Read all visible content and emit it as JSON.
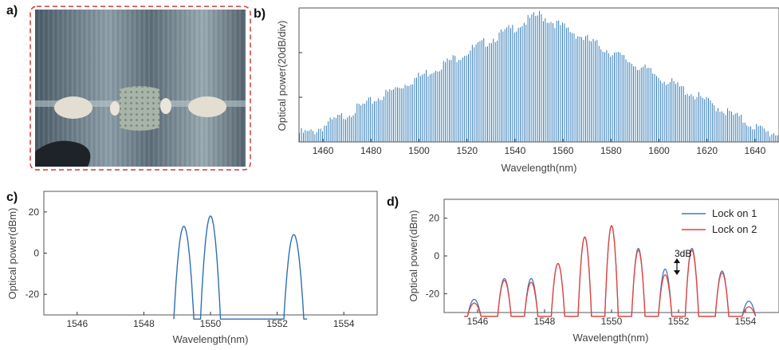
{
  "panel_labels": {
    "a": "a)",
    "b": "b)",
    "c": "c)",
    "d": "d)"
  },
  "photo": {
    "description_icon": "device-photo"
  },
  "chart_data": [
    {
      "id": "b",
      "type": "bar",
      "xlabel": "Wavelength(nm)",
      "ylabel": "Optical power(20dB/div)",
      "xlim": [
        1450,
        1650
      ],
      "xticks": [
        1460,
        1480,
        1500,
        1520,
        1540,
        1560,
        1580,
        1600,
        1620,
        1640
      ],
      "envelope": {
        "center_nm": 1550,
        "peak_div": 2.85,
        "edge_div": 0.2,
        "spacing_nm": 0.8
      },
      "color": "#1f6fb0"
    },
    {
      "id": "c",
      "type": "line",
      "xlabel": "Wavelength(nm)",
      "ylabel": "Optical power(dBm)",
      "xlim": [
        1545,
        1555
      ],
      "ylim": [
        -30,
        30
      ],
      "xticks": [
        1546,
        1548,
        1550,
        1552,
        1554
      ],
      "yticks": [
        20,
        0,
        -20
      ],
      "peaks": [
        {
          "x": 1549.2,
          "y": 13
        },
        {
          "x": 1550.0,
          "y": 18
        },
        {
          "x": 1552.5,
          "y": 9
        }
      ],
      "color": "#2e6fb3"
    },
    {
      "id": "d",
      "type": "line",
      "xlabel": "Wavelength(nm)",
      "ylabel": "Optical power(dBm)",
      "xlim": [
        1545,
        1555
      ],
      "ylim": [
        -30,
        30
      ],
      "xticks": [
        1546,
        1548,
        1550,
        1552,
        1554
      ],
      "yticks": [
        20,
        0,
        -20
      ],
      "series": [
        {
          "name": "Lock on 1",
          "color": "#3a7dbf",
          "peaks": [
            {
              "x": 1545.9,
              "y": -23
            },
            {
              "x": 1546.8,
              "y": -12
            },
            {
              "x": 1547.6,
              "y": -12
            },
            {
              "x": 1548.4,
              "y": -4
            },
            {
              "x": 1549.2,
              "y": 10
            },
            {
              "x": 1550.0,
              "y": 16
            },
            {
              "x": 1550.8,
              "y": 4
            },
            {
              "x": 1551.6,
              "y": -7
            },
            {
              "x": 1552.4,
              "y": 4
            },
            {
              "x": 1553.3,
              "y": -8
            },
            {
              "x": 1554.1,
              "y": -24
            }
          ]
        },
        {
          "name": "Lock on 2",
          "color": "#e8413a",
          "peaks": [
            {
              "x": 1545.9,
              "y": -25
            },
            {
              "x": 1546.8,
              "y": -13
            },
            {
              "x": 1547.6,
              "y": -14
            },
            {
              "x": 1548.4,
              "y": -4
            },
            {
              "x": 1549.2,
              "y": 10
            },
            {
              "x": 1550.0,
              "y": 16
            },
            {
              "x": 1550.8,
              "y": 3
            },
            {
              "x": 1551.6,
              "y": -10
            },
            {
              "x": 1552.4,
              "y": 3
            },
            {
              "x": 1553.3,
              "y": -9
            },
            {
              "x": 1554.1,
              "y": -27
            }
          ]
        }
      ],
      "annotation": {
        "text": "3dB",
        "x": 1551.6
      }
    }
  ]
}
